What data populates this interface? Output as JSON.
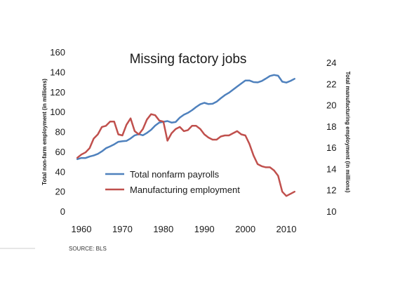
{
  "chart_data": {
    "type": "line",
    "title": "Missing factory jobs",
    "ylabel_left": "Total non-farm employment (in millions)",
    "ylabel_right": "Total manufacturing employment (in millions)",
    "source": "SOURCE: BLS",
    "x_ticks": [
      1960,
      1970,
      1980,
      1990,
      2000,
      2010
    ],
    "ylim_left": [
      0,
      160
    ],
    "yticks_left": [
      0,
      20,
      40,
      60,
      80,
      100,
      120,
      140,
      160
    ],
    "ylim_right": [
      10,
      25
    ],
    "yticks_right": [
      10,
      12,
      14,
      16,
      18,
      20,
      22,
      24
    ],
    "legend_position": "lower-left",
    "series": [
      {
        "name": "Total nonfarm payrolls",
        "axis": "left",
        "color": "#4F81BD",
        "x": [
          1959,
          1960,
          1961,
          1962,
          1963,
          1964,
          1965,
          1966,
          1967,
          1968,
          1969,
          1970,
          1971,
          1972,
          1973,
          1974,
          1975,
          1976,
          1977,
          1978,
          1979,
          1980,
          1981,
          1982,
          1983,
          1984,
          1985,
          1986,
          1987,
          1988,
          1989,
          1990,
          1991,
          1992,
          1993,
          1994,
          1995,
          1996,
          1997,
          1998,
          1999,
          2000,
          2001,
          2002,
          2003,
          2004,
          2005,
          2006,
          2007,
          2008,
          2009,
          2010,
          2011,
          2012
        ],
        "values": [
          53,
          54.2,
          54.1,
          55.6,
          56.7,
          58.3,
          60.8,
          64,
          65.8,
          67.9,
          70.4,
          71,
          71.3,
          73.8,
          76.9,
          78.1,
          77,
          79.4,
          82.5,
          86.7,
          89.8,
          90.5,
          91.3,
          89.7,
          90.3,
          94.7,
          97.6,
          99.5,
          102.2,
          105.4,
          108.1,
          109.6,
          108.3,
          108.6,
          110.7,
          114.2,
          117.3,
          119.7,
          122.8,
          125.9,
          129,
          132,
          132,
          130.4,
          130.1,
          131.5,
          133.9,
          136.5,
          137.6,
          136.8,
          130.8,
          129.9,
          131.5,
          133.7
        ]
      },
      {
        "name": "Manufacturing employment",
        "axis": "right",
        "color": "#C0504D",
        "x": [
          1959,
          1960,
          1961,
          1962,
          1963,
          1964,
          1965,
          1966,
          1967,
          1968,
          1969,
          1970,
          1971,
          1972,
          1973,
          1974,
          1975,
          1976,
          1977,
          1978,
          1979,
          1980,
          1981,
          1982,
          1983,
          1984,
          1985,
          1986,
          1987,
          1988,
          1989,
          1990,
          1991,
          1992,
          1993,
          1994,
          1995,
          1996,
          1997,
          1998,
          1999,
          2000,
          2001,
          2002,
          2003,
          2004,
          2005,
          2006,
          2007,
          2008,
          2009,
          2010,
          2011,
          2012
        ],
        "values": [
          15.1,
          15.4,
          15.6,
          16.0,
          16.9,
          17.3,
          18.0,
          18.1,
          18.5,
          18.5,
          17.3,
          17.2,
          18.2,
          18.8,
          17.6,
          17.3,
          17.8,
          18.7,
          19.2,
          19.1,
          18.6,
          18.5,
          16.7,
          17.4,
          17.8,
          18.0,
          17.6,
          17.7,
          18.1,
          18.1,
          17.8,
          17.3,
          17.0,
          16.8,
          16.8,
          17.1,
          17.2,
          17.2,
          17.4,
          17.6,
          17.3,
          17.2,
          16.4,
          15.3,
          14.5,
          14.3,
          14.2,
          14.2,
          13.9,
          13.4,
          11.9,
          11.5,
          11.7,
          11.9
        ]
      }
    ]
  }
}
